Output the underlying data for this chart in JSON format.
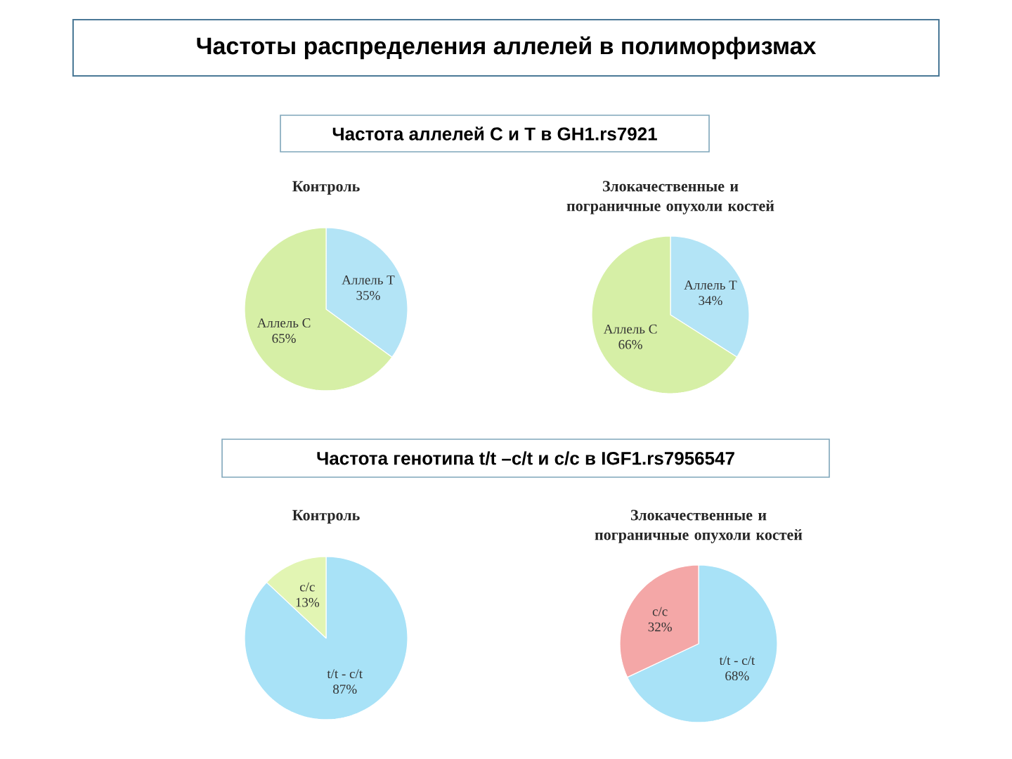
{
  "chart_data": [
    {
      "type": "other",
      "title": "Частоты распределения аллелей в полиморфизмах"
    },
    {
      "type": "other",
      "title": "Частота аллелей С и Т в GH1.rs7921"
    },
    {
      "type": "pie",
      "title": "Контроль",
      "categories": [
        "Аллель Т",
        "Аллель С"
      ],
      "values": [
        35,
        65
      ],
      "value_labels": [
        "35%",
        "65%"
      ],
      "colors": [
        "#b3e4f6",
        "#d6efa6"
      ]
    },
    {
      "type": "pie",
      "title": "Злокачественные и пограничные опухоли костей",
      "categories": [
        "Аллель Т",
        "Аллель С"
      ],
      "values": [
        34,
        66
      ],
      "value_labels": [
        "34%",
        "66%"
      ],
      "colors": [
        "#b3e4f6",
        "#d6efa6"
      ]
    },
    {
      "type": "other",
      "title": "Частота генотипа t/t –c/t и c/c в IGF1.rs7956547"
    },
    {
      "type": "pie",
      "title": "Контроль",
      "categories": [
        "t/t - c/t",
        "c/c"
      ],
      "values": [
        87,
        13
      ],
      "value_labels": [
        "87%",
        "13%"
      ],
      "colors": [
        "#a8e2f7",
        "#e2f5b3"
      ]
    },
    {
      "type": "pie",
      "title": "Злокачественные и пограничные опухоли костей",
      "categories": [
        "t/t - c/t",
        "c/c"
      ],
      "values": [
        68,
        32
      ],
      "value_labels": [
        "68%",
        "32%"
      ],
      "colors": [
        "#a8e2f7",
        "#f4a7a7"
      ]
    }
  ]
}
